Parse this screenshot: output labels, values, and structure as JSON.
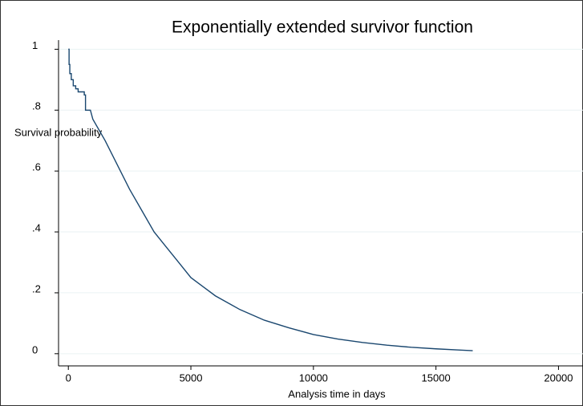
{
  "chart_data": {
    "type": "line",
    "title": "Exponentially extended survivor function",
    "y_label": "Survival probability",
    "x_label": "Analysis time in days",
    "x": [
      0,
      30,
      30,
      60,
      60,
      120,
      120,
      200,
      200,
      300,
      300,
      400,
      400,
      650,
      650,
      700,
      700,
      900,
      1000,
      1500,
      2000,
      2500,
      3000,
      3500,
      4000,
      4500,
      5000,
      6000,
      7000,
      8000,
      9000,
      10000,
      11000,
      12000,
      13000,
      14000,
      15000,
      16000,
      16500
    ],
    "values": [
      1.0,
      1.0,
      0.95,
      0.95,
      0.92,
      0.92,
      0.9,
      0.9,
      0.88,
      0.88,
      0.87,
      0.87,
      0.86,
      0.86,
      0.85,
      0.85,
      0.8,
      0.8,
      0.77,
      0.7,
      0.62,
      0.54,
      0.47,
      0.4,
      0.35,
      0.3,
      0.25,
      0.19,
      0.145,
      0.11,
      0.085,
      0.063,
      0.048,
      0.037,
      0.028,
      0.021,
      0.016,
      0.012,
      0.01
    ],
    "color": "#1a476f",
    "xlim": [
      -400,
      21000
    ],
    "ylim": [
      -0.04,
      1.03
    ],
    "xticks": [
      0,
      5000,
      10000,
      15000,
      20000
    ],
    "yticks": [
      0,
      {
        "value": 0.2,
        "label": ".2"
      },
      {
        "value": 0.4,
        "label": ".4"
      },
      {
        "value": 0.6,
        "label": ".6"
      },
      {
        "value": 0.8,
        "label": ".8"
      },
      1
    ],
    "grid": true
  }
}
